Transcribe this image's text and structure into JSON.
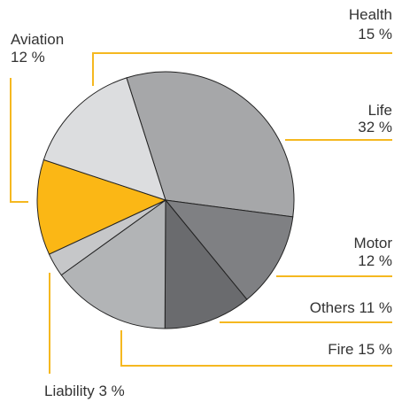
{
  "chart_data": {
    "type": "pie",
    "categories": [
      "Life",
      "Motor",
      "Others",
      "Fire",
      "Liability",
      "Aviation",
      "Health"
    ],
    "values": [
      32,
      12,
      11,
      15,
      3,
      12,
      15
    ],
    "value_labels": [
      "32 %",
      "12 %",
      "11 %",
      "15 %",
      "3 %",
      "12 %",
      "15 %"
    ],
    "colors": [
      "#a6a7a9",
      "#7f8083",
      "#6a6b6e",
      "#b2b4b6",
      "#c6c7c9",
      "#fbb715",
      "#dcdddf"
    ]
  }
}
